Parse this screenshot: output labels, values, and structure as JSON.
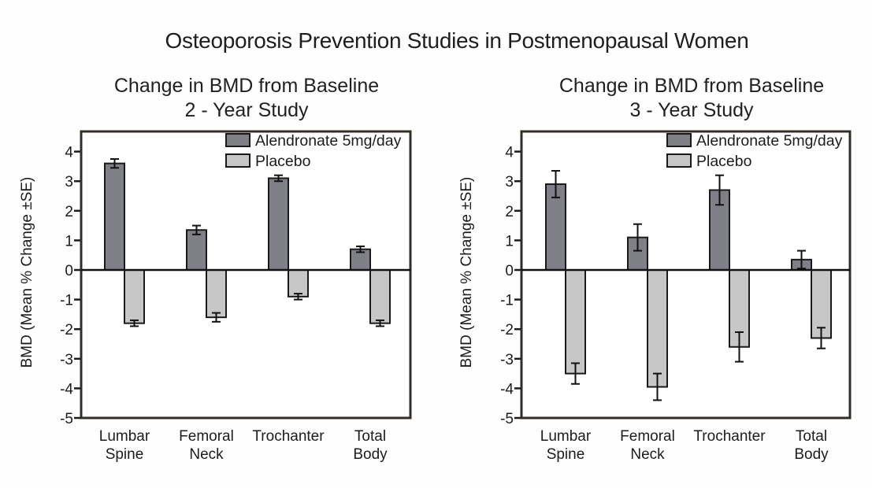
{
  "figure": {
    "main_title": "Osteoporosis Prevention Studies in Postmenopausal Women"
  },
  "colors": {
    "alendronate_bar": "#7f8087",
    "placebo_bar": "#c7c7c7",
    "axis_line": "#332d27",
    "zero_line": "#111111",
    "bar_border": "#1a1a1a",
    "error_bar": "#111111",
    "text": "#1c1c1c",
    "background": "#fefefe"
  },
  "chart_data": [
    {
      "type": "bar",
      "title_line1": "Change in BMD from Baseline",
      "title_line2": "2 - Year Study",
      "ylabel": "BMD (Mean % Change ±SE)",
      "xlabel": "",
      "ylim": [
        -5,
        4.7
      ],
      "yticks": [
        4,
        3,
        2,
        1,
        0,
        -1,
        -2,
        -3,
        -4,
        -5
      ],
      "grid": false,
      "legend_position": "top-right",
      "categories": [
        "Lumbar Spine",
        "Femoral Neck",
        "Trochanter",
        "Total Body"
      ],
      "category_label_lines": [
        [
          "Lumbar",
          "Spine"
        ],
        [
          "Femoral",
          "Neck"
        ],
        [
          "Trochanter"
        ],
        [
          "Total",
          "Body"
        ]
      ],
      "series": [
        {
          "name": "Alendronate 5mg/day",
          "color": "#7f8087",
          "values": [
            3.6,
            1.35,
            3.1,
            0.7
          ],
          "se": [
            0.15,
            0.15,
            0.1,
            0.1
          ]
        },
        {
          "name": "Placebo",
          "color": "#c7c7c7",
          "values": [
            -1.8,
            -1.6,
            -0.9,
            -1.8
          ],
          "se": [
            0.1,
            0.15,
            0.1,
            0.1
          ]
        }
      ]
    },
    {
      "type": "bar",
      "title_line1": "Change in BMD from Baseline",
      "title_line2": "3 - Year Study",
      "ylabel": "BMD (Mean % Change ±SE)",
      "xlabel": "",
      "ylim": [
        -5,
        4.7
      ],
      "yticks": [
        4,
        3,
        2,
        1,
        0,
        -1,
        -2,
        -3,
        -4,
        -5
      ],
      "grid": false,
      "legend_position": "top-right",
      "categories": [
        "Lumbar Spine",
        "Femoral Neck",
        "Trochanter",
        "Total Body"
      ],
      "category_label_lines": [
        [
          "Lumbar",
          "Spine"
        ],
        [
          "Femoral",
          "Neck"
        ],
        [
          "Trochanter"
        ],
        [
          "Total",
          "Body"
        ]
      ],
      "series": [
        {
          "name": "Alendronate 5mg/day",
          "color": "#7f8087",
          "values": [
            2.9,
            1.1,
            2.7,
            0.35
          ],
          "se": [
            0.45,
            0.45,
            0.5,
            0.3
          ]
        },
        {
          "name": "Placebo",
          "color": "#c7c7c7",
          "values": [
            -3.5,
            -3.95,
            -2.6,
            -2.3
          ],
          "se": [
            0.35,
            0.45,
            0.5,
            0.35
          ]
        }
      ]
    }
  ]
}
